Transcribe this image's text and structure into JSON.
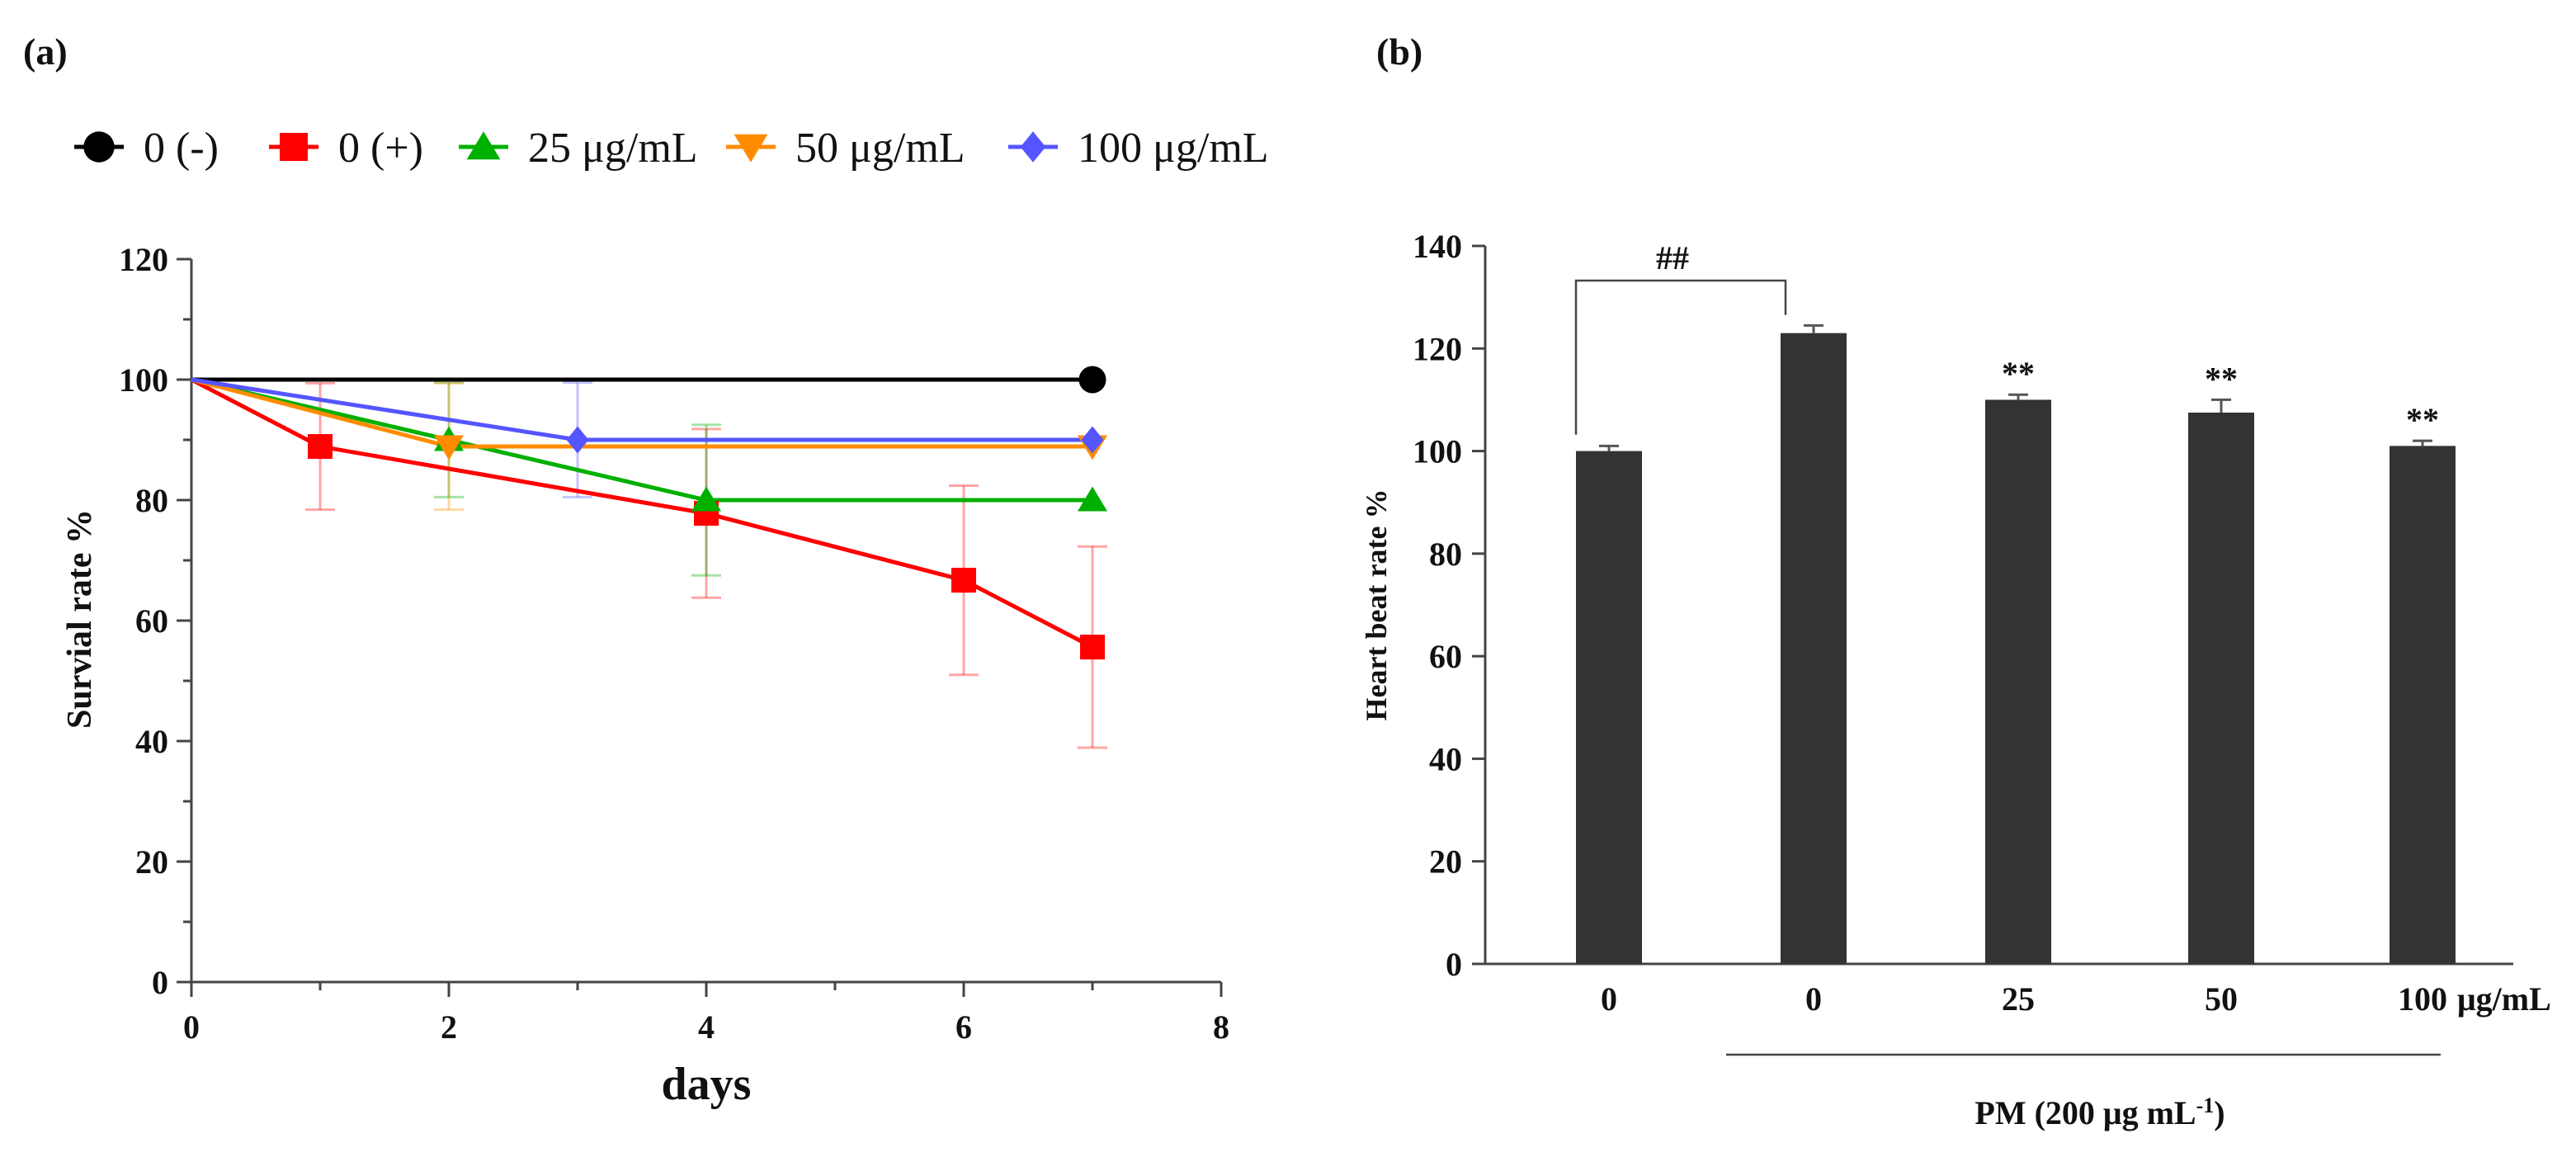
{
  "panels": {
    "a": {
      "label": "(a)"
    },
    "b": {
      "label": "(b)"
    }
  },
  "chart_data": [
    {
      "type": "line",
      "panel": "(a)",
      "xlabel": "days",
      "ylabel": "Survial rate %",
      "xlim": [
        0,
        8
      ],
      "ylim": [
        0,
        120
      ],
      "xticks": [
        "0",
        "2",
        "4",
        "6",
        "8"
      ],
      "yticks": [
        "0",
        "20",
        "40",
        "60",
        "80",
        "100",
        "120"
      ],
      "legend_position": "top",
      "series": [
        {
          "name": "0 (-)",
          "color": "#000000",
          "marker": "circle",
          "x": [
            0,
            7
          ],
          "y": [
            100,
            100
          ],
          "err": [
            0,
            0
          ]
        },
        {
          "name": "0 (+)",
          "color": "#ff0000",
          "marker": "square",
          "x": [
            0,
            1,
            4,
            6,
            7
          ],
          "y": [
            100,
            88.9,
            77.8,
            66.7,
            55.6
          ],
          "err": [
            0,
            10.5,
            14,
            15.7,
            16.7
          ]
        },
        {
          "name": "25 μg/mL",
          "color": "#00b000",
          "marker": "triangle-up",
          "x": [
            0,
            2,
            4,
            7
          ],
          "y": [
            100,
            90,
            80,
            80
          ],
          "err": [
            0,
            9.5,
            12.5,
            0
          ]
        },
        {
          "name": "50 μg/mL",
          "color": "#ff8c00",
          "marker": "triangle-down",
          "x": [
            0,
            2,
            7
          ],
          "y": [
            100,
            88.9,
            88.9
          ],
          "err": [
            0,
            10.5,
            0
          ]
        },
        {
          "name": "100 μg/mL",
          "color": "#5555ff",
          "marker": "diamond",
          "x": [
            0,
            3,
            7
          ],
          "y": [
            100,
            90,
            90
          ],
          "err": [
            0,
            9.5,
            0
          ]
        }
      ]
    },
    {
      "type": "bar",
      "panel": "(b)",
      "ylabel": "Heart beat rate %",
      "ylim": [
        0,
        140
      ],
      "yticks": [
        "0",
        "20",
        "40",
        "60",
        "80",
        "100",
        "120",
        "140"
      ],
      "categories": [
        "0",
        "0",
        "25",
        "50",
        "100"
      ],
      "values": [
        100,
        123,
        110,
        107.5,
        101
      ],
      "err": [
        1,
        1.5,
        1,
        2.5,
        1
      ],
      "annotations": [
        "",
        "",
        "**",
        "**",
        "**"
      ],
      "unit_label": "μg/mL",
      "bracket_label": "##",
      "group_label": "PM (200 μg mL",
      "group_label_sup": "-1",
      "group_label_close": ")",
      "bar_color": "#333333"
    }
  ]
}
